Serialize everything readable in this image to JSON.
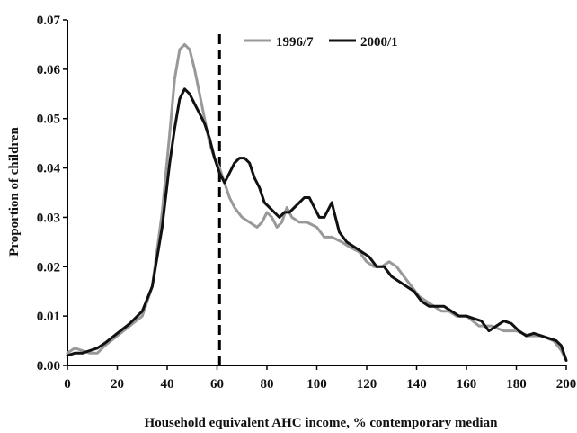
{
  "chart_data": {
    "type": "line",
    "xlabel": "Household equivalent AHC income, % contemporary median",
    "ylabel": "Proportion of children",
    "xlim": [
      0,
      200
    ],
    "ylim": [
      0,
      0.07
    ],
    "x_ticks": [
      "0",
      "20",
      "40",
      "60",
      "80",
      "100",
      "120",
      "140",
      "160",
      "180",
      "200"
    ],
    "y_ticks": [
      "0.00",
      "0.01",
      "0.02",
      "0.03",
      "0.04",
      "0.05",
      "0.06",
      "0.07"
    ],
    "grid": false,
    "legend_position": "top-right",
    "reference_line": {
      "x": 61,
      "style": "dashed"
    },
    "series": [
      {
        "name": "1996/7",
        "color": "#999999",
        "x": [
          0,
          3,
          6,
          9,
          12,
          15,
          20,
          25,
          30,
          34,
          38,
          41,
          43,
          45,
          47,
          49,
          51,
          53,
          55,
          57,
          59,
          61,
          63,
          65,
          67,
          70,
          73,
          76,
          78,
          80,
          82,
          84,
          86,
          88,
          90,
          93,
          96,
          100,
          103,
          106,
          110,
          113,
          117,
          120,
          123,
          126,
          129,
          132,
          135,
          138,
          141,
          144,
          147,
          150,
          153,
          156,
          160,
          165,
          170,
          175,
          180,
          185,
          190,
          195,
          198,
          200
        ],
        "y": [
          0.0025,
          0.0035,
          0.003,
          0.0025,
          0.0025,
          0.004,
          0.006,
          0.008,
          0.01,
          0.016,
          0.031,
          0.047,
          0.058,
          0.064,
          0.065,
          0.064,
          0.06,
          0.055,
          0.05,
          0.045,
          0.042,
          0.04,
          0.037,
          0.034,
          0.032,
          0.03,
          0.029,
          0.028,
          0.029,
          0.031,
          0.03,
          0.028,
          0.029,
          0.032,
          0.03,
          0.029,
          0.029,
          0.028,
          0.026,
          0.026,
          0.025,
          0.024,
          0.023,
          0.021,
          0.02,
          0.02,
          0.021,
          0.02,
          0.018,
          0.016,
          0.014,
          0.013,
          0.012,
          0.011,
          0.011,
          0.01,
          0.01,
          0.008,
          0.008,
          0.007,
          0.007,
          0.006,
          0.006,
          0.005,
          0.003,
          0.001
        ]
      },
      {
        "name": "2000/1",
        "color": "#111111",
        "x": [
          0,
          3,
          6,
          9,
          12,
          15,
          20,
          25,
          30,
          34,
          38,
          41,
          43,
          45,
          47,
          49,
          51,
          53,
          55,
          57,
          59,
          61,
          63,
          65,
          67,
          69,
          71,
          73,
          75,
          77,
          79,
          81,
          83,
          85,
          87,
          89,
          91,
          93,
          95,
          97,
          99,
          101,
          103,
          105,
          106,
          107,
          109,
          112,
          115,
          118,
          121,
          124,
          127,
          130,
          133,
          136,
          139,
          142,
          145,
          148,
          151,
          154,
          157,
          160,
          163,
          166,
          169,
          172,
          175,
          178,
          181,
          184,
          187,
          190,
          193,
          196,
          198,
          200
        ],
        "y": [
          0.002,
          0.0025,
          0.0025,
          0.003,
          0.0035,
          0.0045,
          0.0065,
          0.0085,
          0.011,
          0.016,
          0.028,
          0.041,
          0.048,
          0.054,
          0.056,
          0.055,
          0.053,
          0.051,
          0.049,
          0.046,
          0.042,
          0.039,
          0.037,
          0.039,
          0.041,
          0.042,
          0.042,
          0.041,
          0.038,
          0.036,
          0.033,
          0.032,
          0.031,
          0.03,
          0.031,
          0.031,
          0.032,
          0.033,
          0.034,
          0.034,
          0.032,
          0.03,
          0.03,
          0.032,
          0.033,
          0.031,
          0.027,
          0.025,
          0.024,
          0.023,
          0.022,
          0.02,
          0.02,
          0.018,
          0.017,
          0.016,
          0.015,
          0.013,
          0.012,
          0.012,
          0.012,
          0.011,
          0.01,
          0.01,
          0.0095,
          0.009,
          0.007,
          0.008,
          0.009,
          0.0085,
          0.007,
          0.006,
          0.0065,
          0.006,
          0.0055,
          0.005,
          0.004,
          0.001
        ]
      }
    ]
  }
}
